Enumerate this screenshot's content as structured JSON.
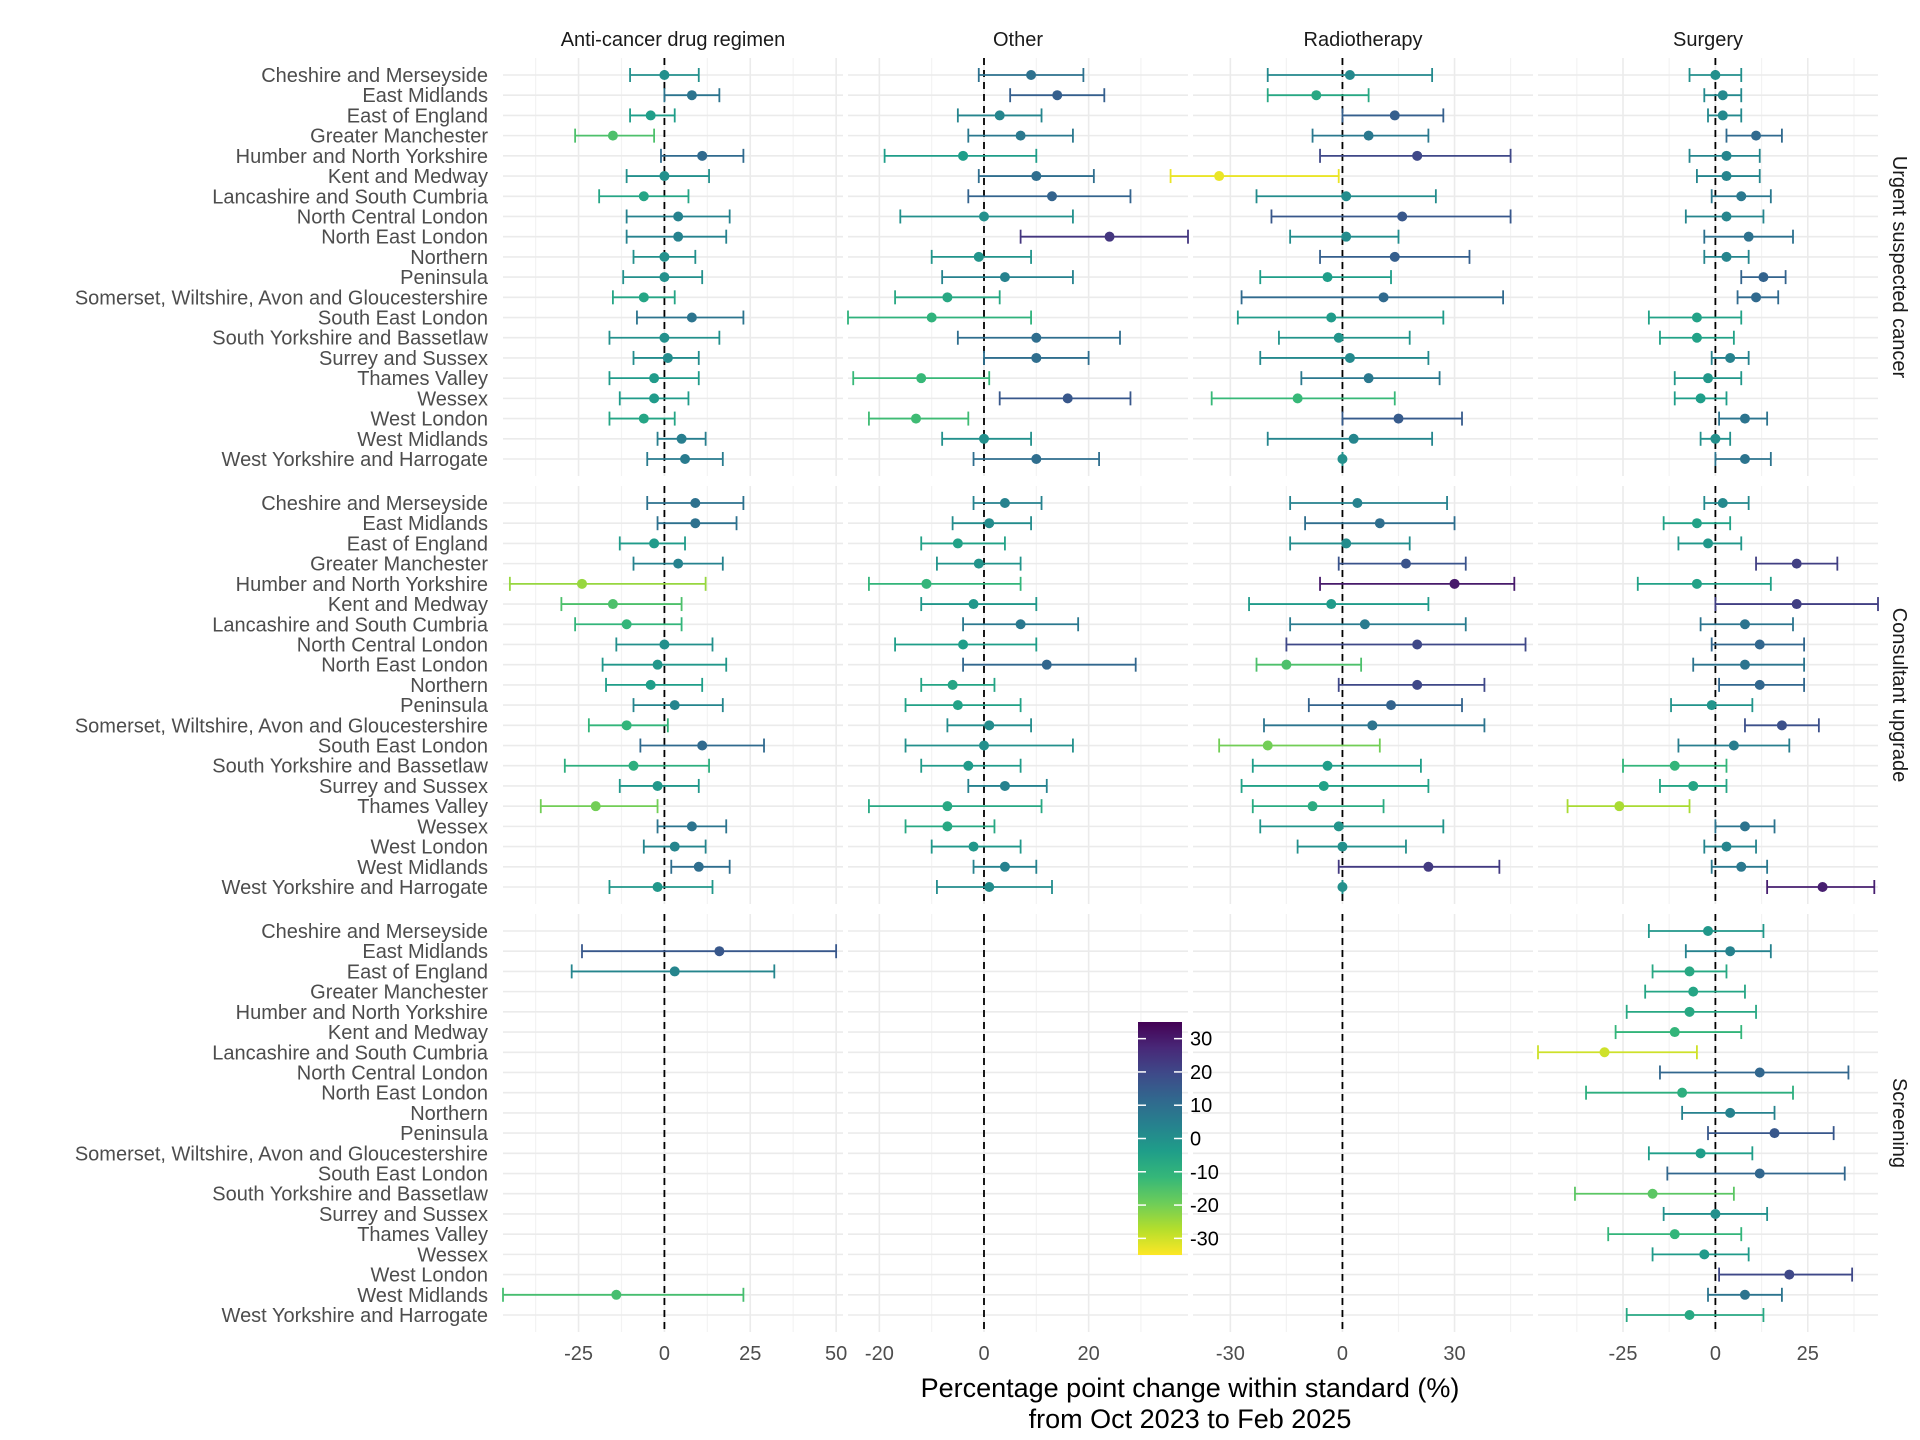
{
  "chart_data": {
    "type": "scatter",
    "subtype": "point-range forest plot (faceted grid)",
    "xlabel": "Percentage point change within standard (%)",
    "xlabel2": "from Oct 2023 to Feb 2025",
    "columns": [
      "Anti-cancer drug regimen",
      "Other",
      "Radiotherapy",
      "Surgery"
    ],
    "rows": [
      "Urgent suspected cancer",
      "Consultant upgrade",
      "Screening"
    ],
    "regions": [
      "Cheshire and Merseyside",
      "East Midlands",
      "East of England",
      "Greater Manchester",
      "Humber and North Yorkshire",
      "Kent and Medway",
      "Lancashire and South Cumbria",
      "North Central London",
      "North East London",
      "Northern",
      "Peninsula",
      "Somerset, Wiltshire, Avon and Gloucestershire",
      "South East London",
      "South Yorkshire and Bassetlaw",
      "Surrey and Sussex",
      "Thames Valley",
      "Wessex",
      "West London",
      "West Midlands",
      "West Yorkshire and Harrogate"
    ],
    "x_axes": [
      {
        "column": "Anti-cancer drug regimen",
        "xlim": [
          -47,
          52
        ],
        "ticks": [
          -25,
          0,
          25,
          50
        ],
        "tick_labels": [
          "-25",
          "0",
          "25",
          "50"
        ]
      },
      {
        "column": "Other",
        "xlim": [
          -26,
          39
        ],
        "ticks": [
          -20,
          0,
          20
        ],
        "tick_labels": [
          "-20",
          "0",
          "20"
        ]
      },
      {
        "column": "Radiotherapy",
        "xlim": [
          -40,
          51
        ],
        "ticks": [
          -30,
          0,
          30
        ],
        "tick_labels": [
          "-30",
          "0",
          "30"
        ]
      },
      {
        "column": "Surgery",
        "xlim": [
          -48,
          44
        ],
        "ticks": [
          -25,
          0,
          25
        ],
        "tick_labels": [
          "-25",
          "0",
          "25"
        ]
      }
    ],
    "reference_line": 0,
    "grid": true,
    "legend": {
      "type": "colorbar",
      "palette": "viridis (reversed)",
      "min": -35,
      "max": 35,
      "ticks": [
        30,
        20,
        10,
        0,
        -10,
        -20,
        -30
      ],
      "tick_labels": [
        "30",
        "20",
        "10",
        "0",
        "-10",
        "-20",
        "-30"
      ],
      "placement": "inside-bottom-center"
    },
    "panels": [
      {
        "row": "Urgent suspected cancer",
        "column": "Anti-cancer drug regimen",
        "points": [
          [
            0,
            -10,
            10
          ],
          [
            8,
            0,
            16
          ],
          [
            -4,
            -10,
            3
          ],
          [
            -15,
            -26,
            -3
          ],
          [
            11,
            -1,
            23
          ],
          [
            0,
            -11,
            13
          ],
          [
            -6,
            -19,
            7
          ],
          [
            4,
            -11,
            19
          ],
          [
            4,
            -11,
            18
          ],
          [
            0,
            -9,
            9
          ],
          [
            0,
            -12,
            11
          ],
          [
            -6,
            -15,
            3
          ],
          [
            8,
            -8,
            23
          ],
          [
            0,
            -16,
            16
          ],
          [
            1,
            -9,
            10
          ],
          [
            -3,
            -16,
            10
          ],
          [
            -3,
            -13,
            7
          ],
          [
            -6,
            -16,
            3
          ],
          [
            5,
            -2,
            12
          ],
          [
            6,
            -5,
            17
          ]
        ]
      },
      {
        "row": "Urgent suspected cancer",
        "column": "Other",
        "points": [
          [
            9,
            -1,
            19
          ],
          [
            14,
            5,
            23
          ],
          [
            3,
            -5,
            11
          ],
          [
            7,
            -3,
            17
          ],
          [
            -4,
            -19,
            10
          ],
          [
            10,
            -1,
            21
          ],
          [
            13,
            -3,
            28
          ],
          [
            0,
            -16,
            17
          ],
          [
            24,
            7,
            39
          ],
          [
            -1,
            -10,
            9
          ],
          [
            4,
            -8,
            17
          ],
          [
            -7,
            -17,
            3
          ],
          [
            -10,
            -26,
            9
          ],
          [
            10,
            -5,
            26
          ],
          [
            10,
            0,
            20
          ],
          [
            -12,
            -25,
            1
          ],
          [
            16,
            3,
            28
          ],
          [
            -13,
            -22,
            -3
          ],
          [
            0,
            -8,
            9
          ],
          [
            10,
            -2,
            22
          ]
        ]
      },
      {
        "row": "Urgent suspected cancer",
        "column": "Radiotherapy",
        "points": [
          [
            2,
            -20,
            24
          ],
          [
            -7,
            -20,
            7
          ],
          [
            14,
            0,
            27
          ],
          [
            7,
            -8,
            23
          ],
          [
            20,
            -6,
            45
          ],
          [
            -33,
            -46,
            -1
          ],
          [
            1,
            -23,
            25
          ],
          [
            16,
            -19,
            45
          ],
          [
            1,
            -14,
            15
          ],
          [
            14,
            -6,
            34
          ],
          [
            -4,
            -22,
            13
          ],
          [
            11,
            -27,
            43
          ],
          [
            -3,
            -28,
            27
          ],
          [
            -1,
            -17,
            18
          ],
          [
            2,
            -22,
            23
          ],
          [
            7,
            -11,
            26
          ],
          [
            -12,
            -35,
            14
          ],
          [
            15,
            0,
            32
          ],
          [
            3,
            -20,
            24
          ],
          [
            0,
            0,
            0
          ]
        ]
      },
      {
        "row": "Urgent suspected cancer",
        "column": "Surgery",
        "points": [
          [
            0,
            -7,
            7
          ],
          [
            2,
            -3,
            7
          ],
          [
            2,
            -2,
            7
          ],
          [
            11,
            3,
            18
          ],
          [
            3,
            -7,
            12
          ],
          [
            3,
            -5,
            12
          ],
          [
            7,
            -1,
            15
          ],
          [
            3,
            -8,
            13
          ],
          [
            9,
            -3,
            21
          ],
          [
            3,
            -3,
            9
          ],
          [
            13,
            7,
            19
          ],
          [
            11,
            6,
            17
          ],
          [
            -5,
            -18,
            7
          ],
          [
            -5,
            -15,
            5
          ],
          [
            4,
            -1,
            9
          ],
          [
            -2,
            -11,
            7
          ],
          [
            -4,
            -11,
            3
          ],
          [
            8,
            1,
            14
          ],
          [
            0,
            -4,
            4
          ],
          [
            8,
            0,
            15
          ]
        ]
      },
      {
        "row": "Consultant upgrade",
        "column": "Anti-cancer drug regimen",
        "points": [
          [
            9,
            -5,
            23
          ],
          [
            9,
            -2,
            21
          ],
          [
            -3,
            -13,
            6
          ],
          [
            4,
            -9,
            17
          ],
          [
            -24,
            -45,
            12
          ],
          [
            -15,
            -30,
            5
          ],
          [
            -11,
            -26,
            5
          ],
          [
            0,
            -14,
            14
          ],
          [
            -2,
            -18,
            18
          ],
          [
            -4,
            -17,
            11
          ],
          [
            3,
            -9,
            17
          ],
          [
            -11,
            -22,
            1
          ],
          [
            11,
            -7,
            29
          ],
          [
            -9,
            -29,
            13
          ],
          [
            -2,
            -13,
            10
          ],
          [
            -20,
            -36,
            -2
          ],
          [
            8,
            -2,
            18
          ],
          [
            3,
            -6,
            12
          ],
          [
            10,
            2,
            19
          ],
          [
            -2,
            -16,
            14
          ]
        ]
      },
      {
        "row": "Consultant upgrade",
        "column": "Other",
        "points": [
          [
            4,
            -2,
            11
          ],
          [
            1,
            -6,
            9
          ],
          [
            -5,
            -12,
            4
          ],
          [
            -1,
            -9,
            7
          ],
          [
            -11,
            -22,
            7
          ],
          [
            -2,
            -12,
            10
          ],
          [
            7,
            -4,
            18
          ],
          [
            -4,
            -17,
            10
          ],
          [
            12,
            -4,
            29
          ],
          [
            -6,
            -12,
            2
          ],
          [
            -5,
            -15,
            7
          ],
          [
            1,
            -7,
            9
          ],
          [
            0,
            -15,
            17
          ],
          [
            -3,
            -12,
            7
          ],
          [
            4,
            -3,
            12
          ],
          [
            -7,
            -22,
            11
          ],
          [
            -7,
            -15,
            2
          ],
          [
            -2,
            -10,
            7
          ],
          [
            4,
            -2,
            10
          ],
          [
            1,
            -9,
            13
          ]
        ]
      },
      {
        "row": "Consultant upgrade",
        "column": "Radiotherapy",
        "points": [
          [
            4,
            -14,
            28
          ],
          [
            10,
            -10,
            30
          ],
          [
            1,
            -14,
            18
          ],
          [
            17,
            -1,
            33
          ],
          [
            30,
            -6,
            46
          ],
          [
            -3,
            -25,
            23
          ],
          [
            6,
            -14,
            33
          ],
          [
            20,
            -15,
            49
          ],
          [
            -15,
            -23,
            5
          ],
          [
            20,
            -1,
            38
          ],
          [
            13,
            -9,
            32
          ],
          [
            8,
            -21,
            38
          ],
          [
            -20,
            -33,
            10
          ],
          [
            -4,
            -24,
            21
          ],
          [
            -5,
            -27,
            23
          ],
          [
            -8,
            -24,
            11
          ],
          [
            -1,
            -22,
            27
          ],
          [
            0,
            -12,
            17
          ],
          [
            23,
            -1,
            42
          ],
          [
            0,
            0,
            0
          ]
        ]
      },
      {
        "row": "Consultant upgrade",
        "column": "Surgery",
        "points": [
          [
            2,
            -3,
            9
          ],
          [
            -5,
            -14,
            4
          ],
          [
            -2,
            -10,
            7
          ],
          [
            22,
            11,
            33
          ],
          [
            -5,
            -21,
            15
          ],
          [
            22,
            0,
            44
          ],
          [
            8,
            -4,
            21
          ],
          [
            12,
            -1,
            24
          ],
          [
            8,
            -6,
            24
          ],
          [
            12,
            1,
            24
          ],
          [
            -1,
            -12,
            10
          ],
          [
            18,
            8,
            28
          ],
          [
            5,
            -10,
            20
          ],
          [
            -11,
            -25,
            3
          ],
          [
            -6,
            -15,
            3
          ],
          [
            -26,
            -40,
            -7
          ],
          [
            8,
            0,
            16
          ],
          [
            3,
            -3,
            11
          ],
          [
            7,
            -1,
            14
          ],
          [
            29,
            14,
            43
          ]
        ]
      },
      {
        "row": "Screening",
        "column": "Anti-cancer drug regimen",
        "points": [
          [
            null,
            null,
            null
          ],
          [
            16,
            -24,
            50
          ],
          [
            3,
            -27,
            32
          ],
          [
            null,
            null,
            null
          ],
          [
            null,
            null,
            null
          ],
          [
            null,
            null,
            null
          ],
          [
            null,
            null,
            null
          ],
          [
            null,
            null,
            null
          ],
          [
            null,
            null,
            null
          ],
          [
            null,
            null,
            null
          ],
          [
            null,
            null,
            null
          ],
          [
            null,
            null,
            null
          ],
          [
            null,
            null,
            null
          ],
          [
            null,
            null,
            null
          ],
          [
            null,
            null,
            null
          ],
          [
            null,
            null,
            null
          ],
          [
            null,
            null,
            null
          ],
          [
            null,
            null,
            null
          ],
          [
            -14,
            -47,
            23
          ],
          [
            null,
            null,
            null
          ]
        ]
      },
      {
        "row": "Screening",
        "column": "Surgery",
        "points": [
          [
            -2,
            -18,
            13
          ],
          [
            4,
            -8,
            15
          ],
          [
            -7,
            -17,
            3
          ],
          [
            -6,
            -19,
            8
          ],
          [
            -7,
            -24,
            11
          ],
          [
            -11,
            -27,
            7
          ],
          [
            -30,
            -48,
            -5
          ],
          [
            12,
            -15,
            36
          ],
          [
            -9,
            -35,
            21
          ],
          [
            4,
            -9,
            16
          ],
          [
            16,
            -2,
            32
          ],
          [
            -4,
            -18,
            10
          ],
          [
            12,
            -13,
            35
          ],
          [
            -17,
            -38,
            5
          ],
          [
            0,
            -14,
            14
          ],
          [
            -11,
            -29,
            7
          ],
          [
            -3,
            -17,
            9
          ],
          [
            20,
            1,
            37
          ],
          [
            8,
            -2,
            18
          ],
          [
            -7,
            -24,
            13
          ]
        ]
      }
    ]
  }
}
